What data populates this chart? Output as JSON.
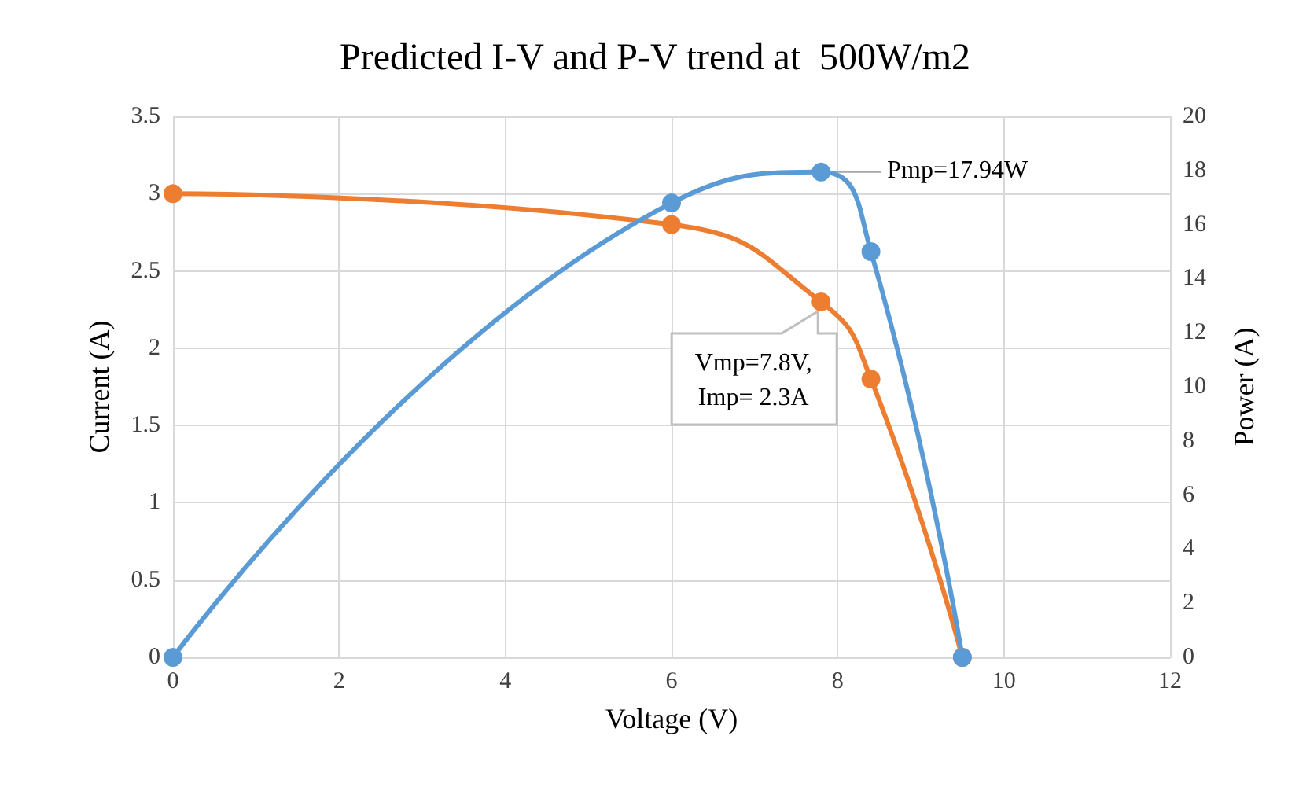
{
  "chart_data": {
    "type": "line",
    "title": "Predicted I-V and P-V trend at  500W/m2",
    "xlabel": "Voltage (V)",
    "ylabel": "Current (A)",
    "y2label": "Power (A)",
    "x": [
      0,
      6,
      7.8,
      8.4,
      9.5
    ],
    "series": [
      {
        "color": "#ed7d31",
        "values": [
          3,
          2.8,
          2.3,
          1.8,
          0
        ]
      },
      {
        "color": "#5b9bd5",
        "axis": "y2",
        "values": [
          0,
          16.8,
          17.94,
          15,
          0
        ]
      }
    ],
    "xlim": [
      0,
      12
    ],
    "xticks": [
      0,
      2,
      4,
      6,
      8,
      10,
      12
    ],
    "ylim": [
      0,
      3.5
    ],
    "yticks": [
      0,
      0.5,
      1,
      1.5,
      2,
      2.5,
      3,
      3.5
    ],
    "y2lim": [
      0,
      20
    ],
    "y2ticks": [
      0,
      2,
      4,
      6,
      8,
      10,
      12,
      14,
      16,
      18,
      20
    ],
    "grid": true,
    "marker": "circle",
    "line_style": "solid",
    "annotations": [
      {
        "text": "Pmp=17.94W",
        "x": 7.8,
        "y": 3.14
      },
      {
        "text": "Vmp=7.8V,\nImp= 2.3A",
        "x": 7.8,
        "y": 2.3
      }
    ]
  }
}
